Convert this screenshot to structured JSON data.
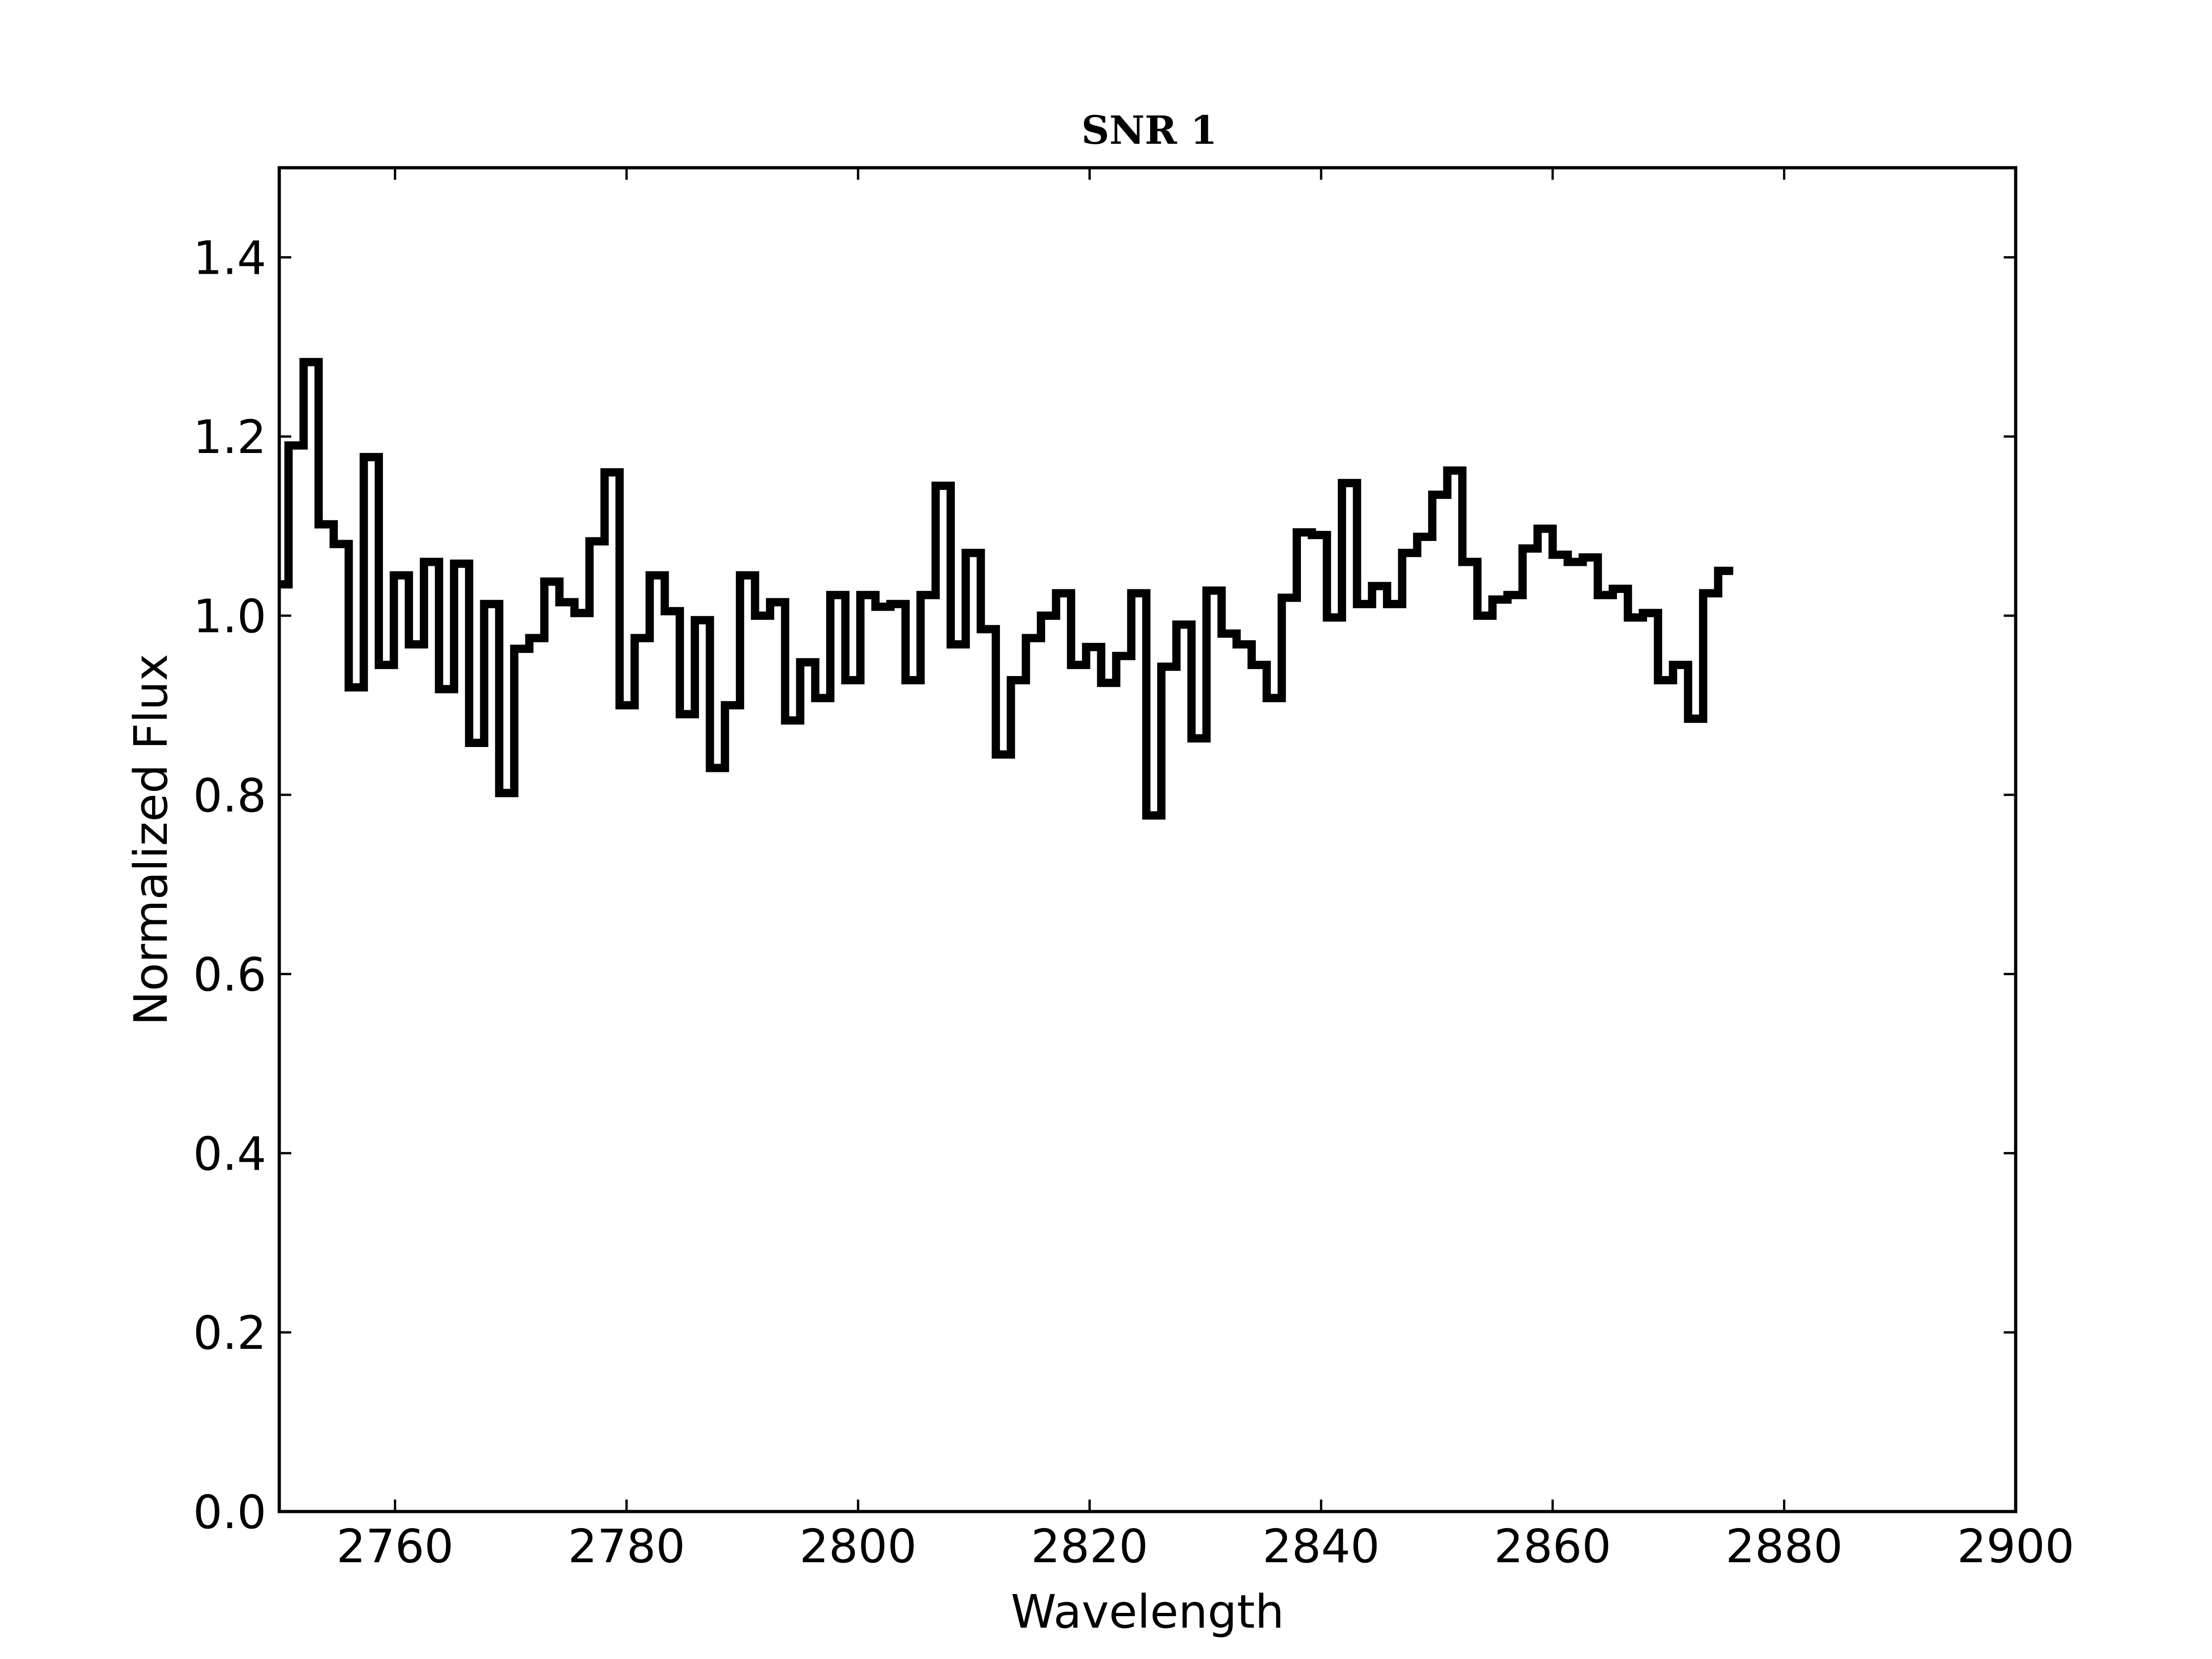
{
  "chart_data": {
    "type": "line",
    "style": "step",
    "title": "SNR 1",
    "xlabel": "Wavelength",
    "ylabel": "Normalized Flux",
    "xlim": [
      2750,
      2900
    ],
    "ylim": [
      0.0,
      1.5
    ],
    "xticks": [
      2760,
      2780,
      2800,
      2820,
      2840,
      2860,
      2880,
      2900
    ],
    "yticks": [
      0.0,
      0.2,
      0.4,
      0.6,
      0.8,
      1.0,
      1.2,
      1.4
    ],
    "xtick_labels": [
      "2760",
      "2780",
      "2800",
      "2820",
      "2840",
      "2860",
      "2880",
      "2900"
    ],
    "ytick_labels": [
      "0.0",
      "0.2",
      "0.4",
      "0.6",
      "0.8",
      "1.0",
      "1.2",
      "1.4"
    ],
    "grid": false,
    "line_color": "#000000",
    "series": [
      {
        "bin_width": 1.3,
        "x_start": 2749.5,
        "values": [
          1.035,
          1.19,
          1.283,
          1.102,
          1.08,
          0.92,
          1.177,
          0.945,
          1.045,
          0.968,
          1.06,
          0.918,
          1.058,
          0.858,
          1.013,
          0.802,
          0.963,
          0.975,
          1.038,
          1.015,
          1.003,
          1.083,
          1.16,
          0.9,
          0.975,
          1.045,
          1.005,
          0.89,
          0.995,
          0.83,
          0.9,
          1.045,
          1.0,
          1.015,
          0.883,
          0.948,
          0.908,
          1.023,
          0.928,
          1.023,
          1.01,
          1.013,
          0.928,
          1.023,
          1.145,
          0.968,
          1.07,
          0.985,
          0.845,
          0.928,
          0.975,
          1.0,
          1.025,
          0.945,
          0.965,
          0.925,
          0.955,
          1.025,
          0.777,
          0.943,
          0.99,
          0.863,
          1.028,
          0.98,
          0.968,
          0.945,
          0.908,
          1.02,
          1.093,
          1.09,
          0.998,
          1.148,
          1.013,
          1.033,
          1.013,
          1.07,
          1.088,
          1.135,
          1.162,
          1.06,
          1.0,
          1.018,
          1.023,
          1.075,
          1.097,
          1.068,
          1.06,
          1.065,
          1.023,
          1.03,
          0.998,
          1.003,
          0.928,
          0.945,
          0.885,
          1.025,
          1.05
        ]
      }
    ]
  }
}
